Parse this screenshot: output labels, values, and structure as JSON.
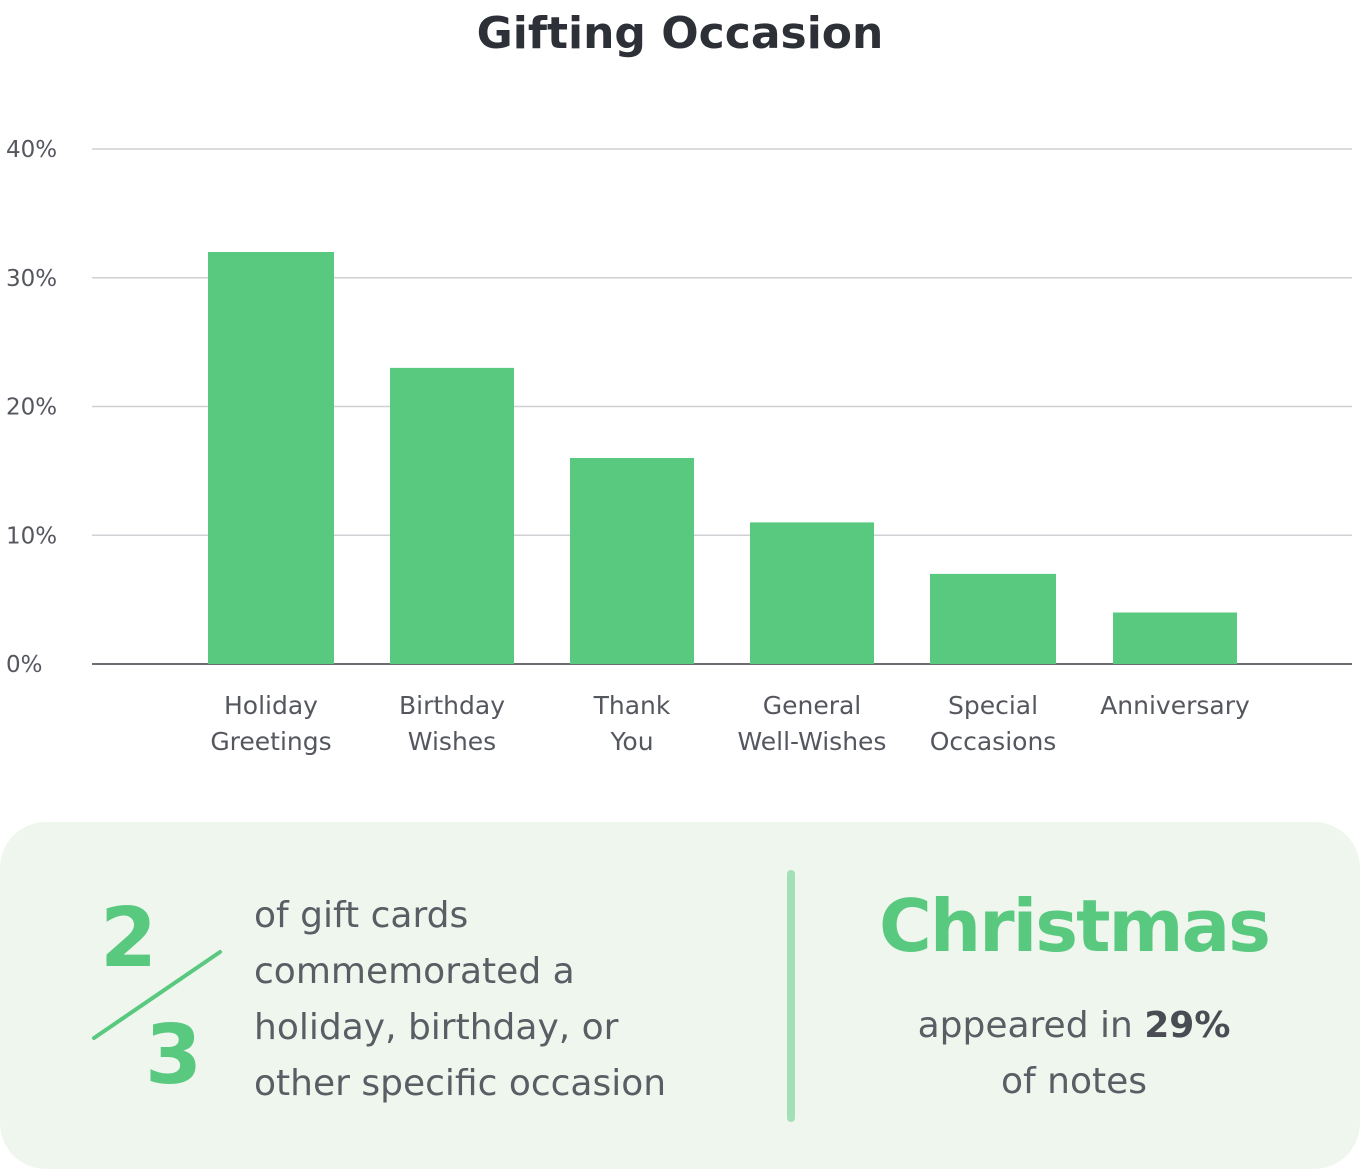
{
  "chart_data": {
    "type": "bar",
    "title": "Gifting Occasion",
    "categories": [
      [
        "Holiday",
        "Greetings"
      ],
      [
        "Birthday",
        "Wishes"
      ],
      [
        "Thank",
        "You"
      ],
      [
        "General",
        "Well-Wishes"
      ],
      [
        "Special",
        "Occasions"
      ],
      [
        "Anniversary"
      ]
    ],
    "values": [
      32,
      23,
      16,
      11,
      7,
      4
    ],
    "unit": "%",
    "ylim": [
      0,
      40
    ],
    "yticks": [
      0,
      10,
      20,
      30,
      40
    ],
    "ytick_labels": [
      "0%",
      "10%",
      "20%",
      "30%",
      "40%"
    ],
    "grid": true,
    "legend": "none",
    "colors": {
      "bar": "#5ac980",
      "grid": "#cfd1d4",
      "axis": "#6b6d72"
    }
  },
  "callout": {
    "fraction": {
      "numerator": "2",
      "denominator": "3"
    },
    "fraction_text": [
      "of gift cards",
      "commemorated a",
      "holiday, birthday, or",
      "other specific occasion"
    ],
    "highlight_word": "Christmas",
    "highlight_prefix": "appeared in ",
    "highlight_value": "29%",
    "highlight_suffix": "of notes",
    "colors": {
      "accent": "#5ac980",
      "panel_bg": "#eff6ee",
      "divider": "#a4e0b6"
    }
  }
}
